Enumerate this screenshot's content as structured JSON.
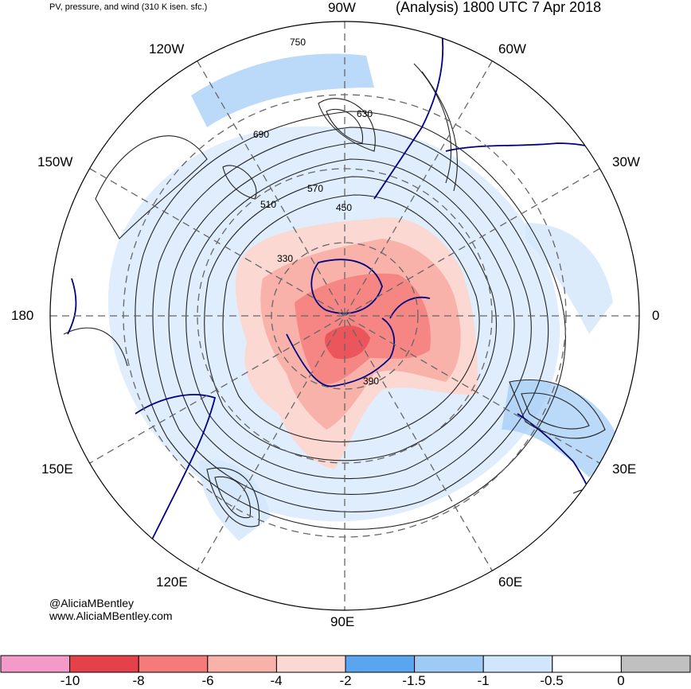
{
  "header": {
    "left_title": "PV, pressure, and wind (310 K isen. sfc.)",
    "right_title": "(Analysis) 1800 UTC 7 Apr 2018"
  },
  "longitudes": [
    "90W",
    "60W",
    "30W",
    "0",
    "30E",
    "60E",
    "90E",
    "120E",
    "150E",
    "180",
    "150W",
    "120W"
  ],
  "pressure_labels": [
    "330",
    "390",
    "450",
    "510",
    "570",
    "630",
    "690",
    "750"
  ],
  "credits": {
    "handle": "@AliciaMBentley",
    "site": "www.AliciaMBentley.com"
  },
  "colorbar": {
    "colors": [
      "#f49ac8",
      "#e5414a",
      "#f57a7a",
      "#f9b2a9",
      "#fbd8d2",
      "#5aa5f0",
      "#9ecbf6",
      "#d2e6fb",
      "#ffffff",
      "#c0c0c0"
    ],
    "tick_labels": [
      "-10",
      "-8",
      "-6",
      "-4",
      "-2",
      "-1.5",
      "-1",
      "-0.5",
      "0"
    ]
  }
}
